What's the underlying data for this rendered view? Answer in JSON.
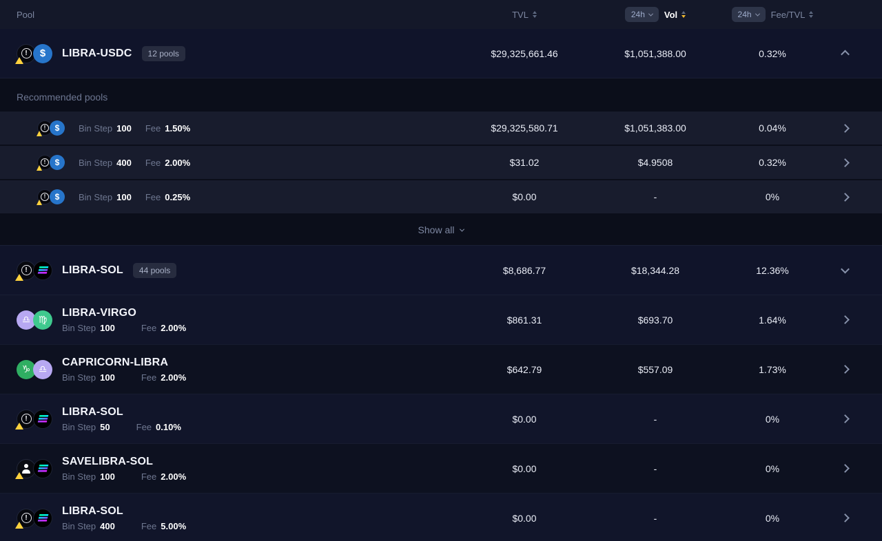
{
  "header": {
    "pool": "Pool",
    "tvl": "TVL",
    "vol_timeframe": "24h",
    "vol": "Vol",
    "fee_timeframe": "24h",
    "fee_tvl": "Fee/TVL"
  },
  "labels": {
    "bin_step": "Bin Step",
    "fee": "Fee",
    "recommended": "Recommended pools",
    "show_all": "Show all"
  },
  "icons": {
    "warning": "!",
    "usdc": "$",
    "virgo": "♍",
    "libra": "♎",
    "capricorn": "♑"
  },
  "colors": {
    "usdc_blue": "#2775ca",
    "warning_yellow": "#ffd23e",
    "sol_gradient_start": "#00ffa3",
    "sol_gradient_end": "#dc1fff",
    "virgo_green": "#3fc98e",
    "capricorn_green": "#2fae62",
    "libra_purple": "#b7a8f2",
    "sort_active": "#f3ba2f"
  },
  "expanded_group": {
    "name": "LIBRA-USDC",
    "badge": "12 pools",
    "tvl": "$29,325,661.46",
    "vol": "$1,051,388.00",
    "fee_tvl": "0.32%"
  },
  "recommended_pools": [
    {
      "bin_step": "100",
      "fee": "1.50%",
      "tvl": "$29,325,580.71",
      "vol": "$1,051,383.00",
      "fee_tvl": "0.04%"
    },
    {
      "bin_step": "400",
      "fee": "2.00%",
      "tvl": "$31.02",
      "vol": "$4.9508",
      "fee_tvl": "0.32%"
    },
    {
      "bin_step": "100",
      "fee": "0.25%",
      "tvl": "$0.00",
      "vol": "-",
      "fee_tvl": "0%"
    }
  ],
  "sol_group": {
    "name": "LIBRA-SOL",
    "badge": "44 pools",
    "tvl": "$8,686.77",
    "vol": "$18,344.28",
    "fee_tvl": "12.36%"
  },
  "pools": [
    {
      "name": "LIBRA-VIRGO",
      "bin_step": "100",
      "fee": "2.00%",
      "tvl": "$861.31",
      "vol": "$693.70",
      "fee_tvl": "1.64%"
    },
    {
      "name": "CAPRICORN-LIBRA",
      "bin_step": "100",
      "fee": "2.00%",
      "tvl": "$642.79",
      "vol": "$557.09",
      "fee_tvl": "1.73%"
    },
    {
      "name": "LIBRA-SOL",
      "bin_step": "50",
      "fee": "0.10%",
      "tvl": "$0.00",
      "vol": "-",
      "fee_tvl": "0%"
    },
    {
      "name": "SAVELIBRA-SOL",
      "bin_step": "100",
      "fee": "2.00%",
      "tvl": "$0.00",
      "vol": "-",
      "fee_tvl": "0%"
    },
    {
      "name": "LIBRA-SOL",
      "bin_step": "400",
      "fee": "5.00%",
      "tvl": "$0.00",
      "vol": "-",
      "fee_tvl": "0%"
    }
  ]
}
